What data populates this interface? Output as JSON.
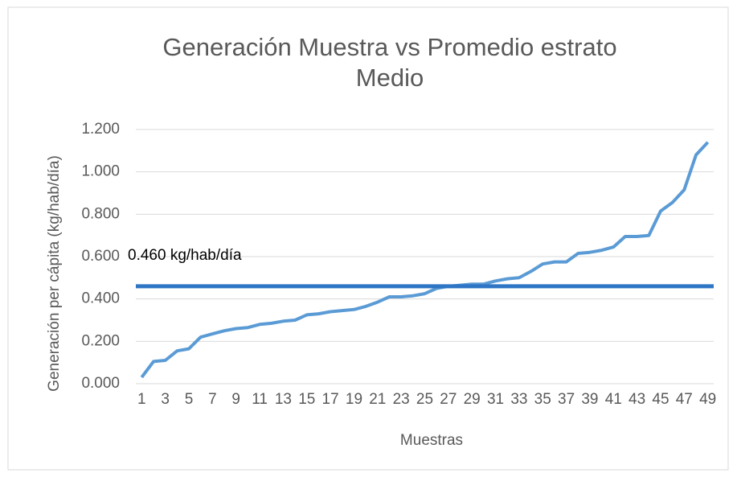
{
  "chart_data": {
    "type": "line",
    "title": "Generación Muestra vs Promedio estrato Medio",
    "x_label": "Muestras",
    "y_label": "Generación per cápita (kg/hab/día)",
    "categories": [
      1,
      null,
      3,
      null,
      5,
      null,
      7,
      null,
      9,
      null,
      11,
      null,
      13,
      null,
      15,
      null,
      17,
      null,
      19,
      null,
      21,
      null,
      23,
      null,
      25,
      null,
      27,
      null,
      29,
      null,
      31,
      null,
      33,
      null,
      35,
      null,
      37,
      null,
      39,
      null,
      41,
      null,
      43,
      null,
      45,
      null,
      47,
      null,
      49
    ],
    "values": [
      0.03,
      0.105,
      0.11,
      0.155,
      0.165,
      0.22,
      0.235,
      0.25,
      0.26,
      0.265,
      0.28,
      0.285,
      0.295,
      0.3,
      0.325,
      0.33,
      0.34,
      0.345,
      0.35,
      0.365,
      0.385,
      0.41,
      0.41,
      0.415,
      0.425,
      0.45,
      0.46,
      0.465,
      0.47,
      0.47,
      0.485,
      0.495,
      0.5,
      0.53,
      0.565,
      0.575,
      0.575,
      0.615,
      0.62,
      0.63,
      0.645,
      0.695,
      0.695,
      0.7,
      0.815,
      0.855,
      0.915,
      1.08,
      1.14
    ],
    "color": "#5b9bd5",
    "average": {
      "value": 0.46,
      "label": "0.460 kg/hab/día",
      "color": "#2e75c5"
    },
    "ylim": [
      0,
      1.2
    ],
    "yticks": [
      {
        "value": 0,
        "label": "0.000"
      },
      {
        "value": 0.2,
        "label": "0.200"
      },
      {
        "value": 0.4,
        "label": "0.400"
      },
      {
        "value": 0.6,
        "label": "0.600"
      },
      {
        "value": 0.8,
        "label": "0.800"
      },
      {
        "value": 1.0,
        "label": "1.000"
      },
      {
        "value": 1.2,
        "label": "1.200"
      }
    ],
    "grid": true
  }
}
